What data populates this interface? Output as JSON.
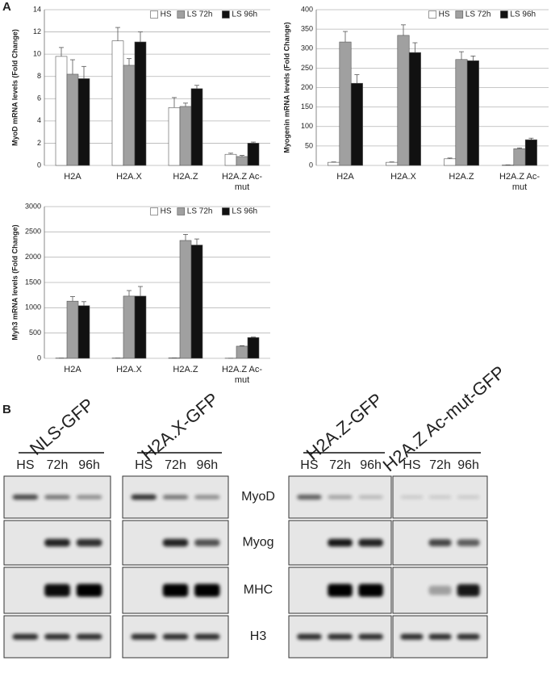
{
  "panels": [
    "A",
    "B"
  ],
  "chart_data": [
    {
      "type": "bar",
      "ylabel": "MyoD mRNA levels (Fold Change)",
      "categories": [
        "H2A",
        "H2A.X",
        "H2A.Z",
        "H2A.Z Ac-mut"
      ],
      "ylim": [
        0,
        14
      ],
      "yticks": [
        0,
        2,
        4,
        6,
        8,
        10,
        12,
        14
      ],
      "grid": true,
      "legend": "upper right",
      "series": [
        {
          "name": "HS",
          "color": "#ffffff",
          "values": [
            9.8,
            11.2,
            5.2,
            1.0
          ],
          "errors": [
            0.8,
            1.2,
            0.9,
            0.1
          ]
        },
        {
          "name": "LS 72h",
          "color": "#a0a0a0",
          "values": [
            8.2,
            9.0,
            5.3,
            0.8
          ],
          "errors": [
            1.3,
            0.6,
            0.3,
            0.1
          ]
        },
        {
          "name": "LS 96h",
          "color": "#111111",
          "values": [
            7.8,
            11.1,
            6.9,
            2.0
          ],
          "errors": [
            1.1,
            0.9,
            0.3,
            0.1
          ]
        }
      ]
    },
    {
      "type": "bar",
      "ylabel": "Myogenin mRNA levels (Fold Change)",
      "categories": [
        "H2A",
        "H2A.X",
        "H2A.Z",
        "H2A.Z Ac-mut"
      ],
      "ylim": [
        0,
        400
      ],
      "yticks": [
        0,
        50,
        100,
        150,
        200,
        250,
        300,
        350,
        400
      ],
      "grid": true,
      "legend": "upper right",
      "series": [
        {
          "name": "HS",
          "color": "#ffffff",
          "values": [
            8,
            8,
            17,
            1
          ],
          "errors": [
            1,
            1,
            2,
            0.5
          ]
        },
        {
          "name": "LS 72h",
          "color": "#a0a0a0",
          "values": [
            317,
            334,
            272,
            43
          ],
          "errors": [
            27,
            27,
            20,
            2
          ]
        },
        {
          "name": "LS 96h",
          "color": "#111111",
          "values": [
            211,
            290,
            269,
            66
          ],
          "errors": [
            22,
            25,
            12,
            4
          ]
        }
      ]
    },
    {
      "type": "bar",
      "ylabel": "Myh3 mRNA levels (Fold Change)",
      "categories": [
        "H2A",
        "H2A.X",
        "H2A.Z",
        "H2A.Z Ac-mut"
      ],
      "ylim": [
        0,
        3000
      ],
      "yticks": [
        0,
        500,
        1000,
        1500,
        2000,
        2500,
        3000
      ],
      "grid": true,
      "legend": "upper right",
      "series": [
        {
          "name": "HS",
          "color": "#ffffff",
          "values": [
            5,
            5,
            8,
            3
          ],
          "errors": [
            0,
            0,
            0,
            0
          ]
        },
        {
          "name": "LS 72h",
          "color": "#a0a0a0",
          "values": [
            1130,
            1230,
            2330,
            240
          ],
          "errors": [
            90,
            110,
            120,
            10
          ]
        },
        {
          "name": "LS 96h",
          "color": "#111111",
          "values": [
            1040,
            1230,
            2240,
            410
          ],
          "errors": [
            80,
            190,
            120,
            10
          ]
        }
      ]
    }
  ],
  "blots": {
    "groups": [
      {
        "title": "NLS-GFP",
        "lanes": [
          "HS",
          "72h",
          "96h"
        ]
      },
      {
        "title": "H2A.X-GFP",
        "lanes": [
          "HS",
          "72h",
          "96h"
        ]
      },
      {
        "title": "H2A.Z-GFP",
        "lanes": [
          "HS",
          "72h",
          "96h"
        ]
      },
      {
        "title": "H2A.Z Ac-mut-GFP",
        "lanes": [
          "HS",
          "72h",
          "96h"
        ]
      }
    ],
    "rows": [
      "MyoD",
      "Myog",
      "MHC",
      "H3"
    ]
  }
}
